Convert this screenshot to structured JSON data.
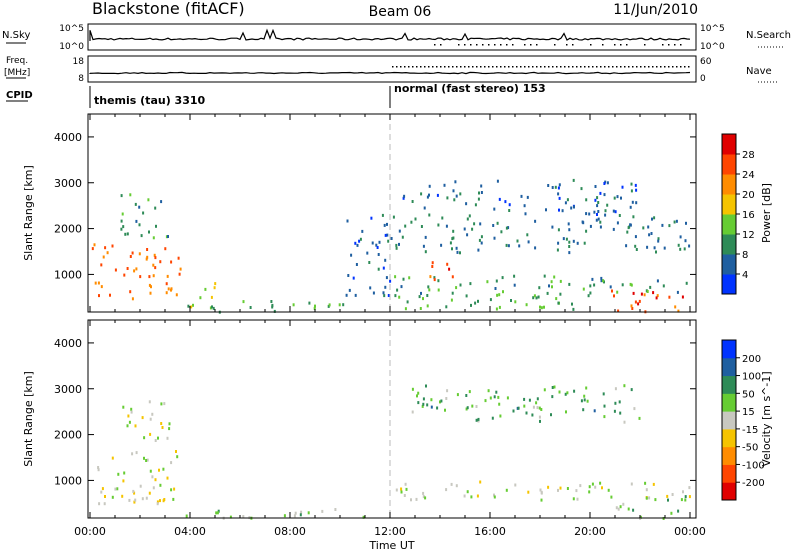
{
  "header": {
    "station": "Blackstone (fitACF)",
    "beam": "Beam 06",
    "date": "11/Jun/2010"
  },
  "noise_panel": {
    "left_label": "N.Sky",
    "left_ticks": [
      "10^5",
      "10^0"
    ],
    "right_ticks": [
      "10^5",
      "10^0"
    ],
    "right_label": "N.Search"
  },
  "freq_panel": {
    "left_label_1": "Freq.",
    "left_label_2": "[MHz]",
    "left_ticks": [
      "18",
      "8"
    ],
    "right_ticks": [
      "60",
      "0"
    ],
    "right_label": "Nave"
  },
  "cpid": {
    "label": "CPID",
    "modes": [
      {
        "text": "themis (tau) 3310",
        "start_hour": 0
      },
      {
        "text": "normal (fast stereo) 153",
        "start_hour": 12
      }
    ]
  },
  "x_axis": {
    "ticks": [
      "00:00",
      "04:00",
      "08:00",
      "12:00",
      "16:00",
      "20:00",
      "00:00"
    ],
    "label": "Time UT"
  },
  "colors": {
    "power": [
      "#0033ff",
      "#1f5fa0",
      "#2e8b57",
      "#66cc33",
      "#f5c400",
      "#ff8c00",
      "#ff4500",
      "#e00000"
    ],
    "velocity": [
      "#e00000",
      "#ff4500",
      "#ff8c00",
      "#f5c400",
      "#c8c8c0",
      "#66cc33",
      "#2e8b57",
      "#1f5fa0",
      "#0033ff"
    ]
  },
  "chart_data": [
    {
      "type": "heatmap",
      "panel": "power",
      "x_range_hours": [
        0,
        24
      ],
      "ylim": [
        180,
        4500
      ],
      "ylabel": "Slant Range [km]",
      "y_ticks": [
        1000,
        2000,
        3000,
        4000
      ],
      "colorbar": {
        "label": "Power [dB]",
        "ticks": [
          "28",
          "24",
          "20",
          "16",
          "12",
          "8",
          "4"
        ],
        "range": [
          0,
          32
        ]
      },
      "regions": [
        {
          "t0": 0.0,
          "t1": 3.6,
          "r0": 500,
          "r1": 1700,
          "value": 24
        },
        {
          "t0": 1.2,
          "t1": 3.2,
          "r0": 1800,
          "r1": 2800,
          "value": 10
        },
        {
          "t0": 3.8,
          "t1": 10.5,
          "r0": 200,
          "r1": 450,
          "value": 12
        },
        {
          "t0": 4.0,
          "t1": 5.0,
          "r0": 300,
          "r1": 900,
          "value": 16
        },
        {
          "t0": 10.2,
          "t1": 12.0,
          "r0": 500,
          "r1": 2400,
          "value": 6
        },
        {
          "t0": 12.0,
          "t1": 24.0,
          "r0": 600,
          "r1": 1000,
          "value": 10
        },
        {
          "t0": 13.0,
          "t1": 14.5,
          "r0": 900,
          "r1": 1300,
          "value": 26
        },
        {
          "t0": 12.0,
          "t1": 24.0,
          "r0": 1500,
          "r1": 2300,
          "value": 8
        },
        {
          "t0": 12.5,
          "t1": 22.0,
          "r0": 2300,
          "r1": 3100,
          "value": 6
        },
        {
          "t0": 20.5,
          "t1": 24.0,
          "r0": 200,
          "r1": 700,
          "value": 27
        },
        {
          "t0": 12.0,
          "t1": 20.0,
          "r0": 200,
          "r1": 600,
          "value": 12
        }
      ]
    },
    {
      "type": "heatmap",
      "panel": "velocity",
      "x_range_hours": [
        0,
        24
      ],
      "ylim": [
        180,
        4500
      ],
      "ylabel": "Slant Range [km]",
      "y_ticks": [
        1000,
        2000,
        3000,
        4000
      ],
      "colorbar": {
        "label": "Velocity [m s^-1]",
        "ticks": [
          "200",
          "100",
          "50",
          "15",
          "-15",
          "-50",
          "-100",
          "-200"
        ],
        "range": [
          -250,
          250
        ]
      },
      "regions": [
        {
          "t0": 0.0,
          "t1": 3.6,
          "r0": 500,
          "r1": 1700,
          "value": 0
        },
        {
          "t0": 1.2,
          "t1": 3.2,
          "r0": 1800,
          "r1": 2800,
          "value": 0
        },
        {
          "t0": 3.8,
          "t1": 12.0,
          "r0": 200,
          "r1": 400,
          "value": 35
        },
        {
          "t0": 12.0,
          "t1": 24.0,
          "r0": 600,
          "r1": 1000,
          "value": 0
        },
        {
          "t0": 12.5,
          "t1": 22.0,
          "r0": 2300,
          "r1": 3100,
          "value": 80
        },
        {
          "t0": 20.5,
          "t1": 24.0,
          "r0": 200,
          "r1": 700,
          "value": 30
        }
      ]
    }
  ]
}
